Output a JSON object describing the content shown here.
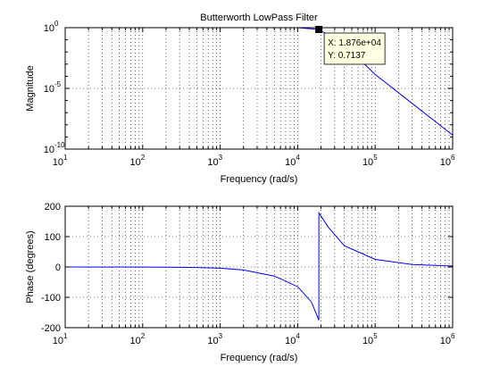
{
  "chart_data": [
    {
      "type": "line",
      "title": "Butterworth LowPass Filter",
      "xlabel": "Frequency (rad/s)",
      "ylabel": "Magnitude",
      "xscale": "log",
      "yscale": "log",
      "xlim": [
        10,
        1000000
      ],
      "ylim": [
        1e-10,
        1
      ],
      "grid": true,
      "x_tick_labels": [
        {
          "base": "10",
          "exp": "1"
        },
        {
          "base": "10",
          "exp": "2"
        },
        {
          "base": "10",
          "exp": "3"
        },
        {
          "base": "10",
          "exp": "4"
        },
        {
          "base": "10",
          "exp": "5"
        },
        {
          "base": "10",
          "exp": "6"
        }
      ],
      "y_tick_labels": [
        {
          "base": "10",
          "exp": "0"
        },
        {
          "base": "10",
          "exp": "-5"
        },
        {
          "base": "10",
          "exp": "-10"
        }
      ],
      "series": [
        {
          "color": "#0000ff",
          "x": [
            10,
            1000,
            10000,
            18760,
            40000,
            100000,
            300000,
            1000000
          ],
          "y": [
            1,
            1,
            1,
            0.7137,
            0.04,
            0.00014,
            5.8e-07,
            1.4e-09
          ]
        }
      ],
      "datatip": {
        "x": 18760,
        "y": 0.7137,
        "x_text": "X: 1.876e+04",
        "y_text": "Y: 0.7137"
      }
    },
    {
      "type": "line",
      "xlabel": "Frequency (rad/s)",
      "ylabel": "Phase (degrees)",
      "xscale": "log",
      "xlim": [
        10,
        1000000
      ],
      "ylim": [
        -200,
        200
      ],
      "grid": true,
      "x_tick_labels": [
        {
          "base": "10",
          "exp": "1"
        },
        {
          "base": "10",
          "exp": "2"
        },
        {
          "base": "10",
          "exp": "3"
        },
        {
          "base": "10",
          "exp": "4"
        },
        {
          "base": "10",
          "exp": "5"
        },
        {
          "base": "10",
          "exp": "6"
        }
      ],
      "y_ticks": [
        -200,
        -100,
        0,
        100,
        200
      ],
      "y_tick_labels": [
        "-200",
        "-100",
        "0",
        "100",
        "200"
      ],
      "series": [
        {
          "color": "#0000ff",
          "x": [
            10,
            100,
            200,
            500,
            1000,
            2000,
            5000,
            10000,
            15000,
            18760,
            18800,
            25000,
            40000,
            100000,
            300000,
            1000000
          ],
          "y": [
            0,
            -0.3,
            -0.6,
            -2,
            -4,
            -10,
            -30,
            -65,
            -115,
            -175,
            178,
            130,
            70,
            25,
            8,
            3
          ]
        }
      ]
    }
  ]
}
